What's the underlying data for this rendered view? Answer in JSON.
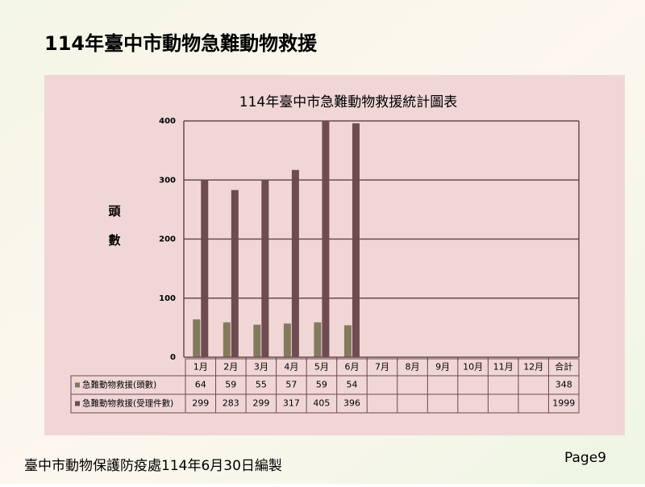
{
  "slide_title": "114年臺中市動物急難動物救援",
  "footer": "臺中市動物保護防疫處114年6月30日編製",
  "page": "Page9",
  "chart_data": {
    "type": "bar",
    "title": "114年臺中市急難動物救援統計圖表",
    "y_label": "頭數",
    "categories": [
      "1月",
      "2月",
      "3月",
      "4月",
      "5月",
      "6月",
      "7月",
      "8月",
      "9月",
      "10月",
      "11月",
      "12月"
    ],
    "total_label": "合計",
    "series": [
      {
        "name": "急難動物救援(頭數)",
        "color": "#827a5c",
        "values": [
          64,
          59,
          55,
          57,
          59,
          54,
          null,
          null,
          null,
          null,
          null,
          null
        ],
        "total": 348
      },
      {
        "name": "急難動物救援(受理件數)",
        "color": "#6e4c52",
        "values": [
          299,
          283,
          299,
          317,
          405,
          396,
          null,
          null,
          null,
          null,
          null,
          null
        ],
        "total": 1999
      }
    ],
    "ylim": [
      0,
      400
    ],
    "yticks": [
      0,
      100,
      200,
      300,
      400
    ],
    "grid": true
  }
}
